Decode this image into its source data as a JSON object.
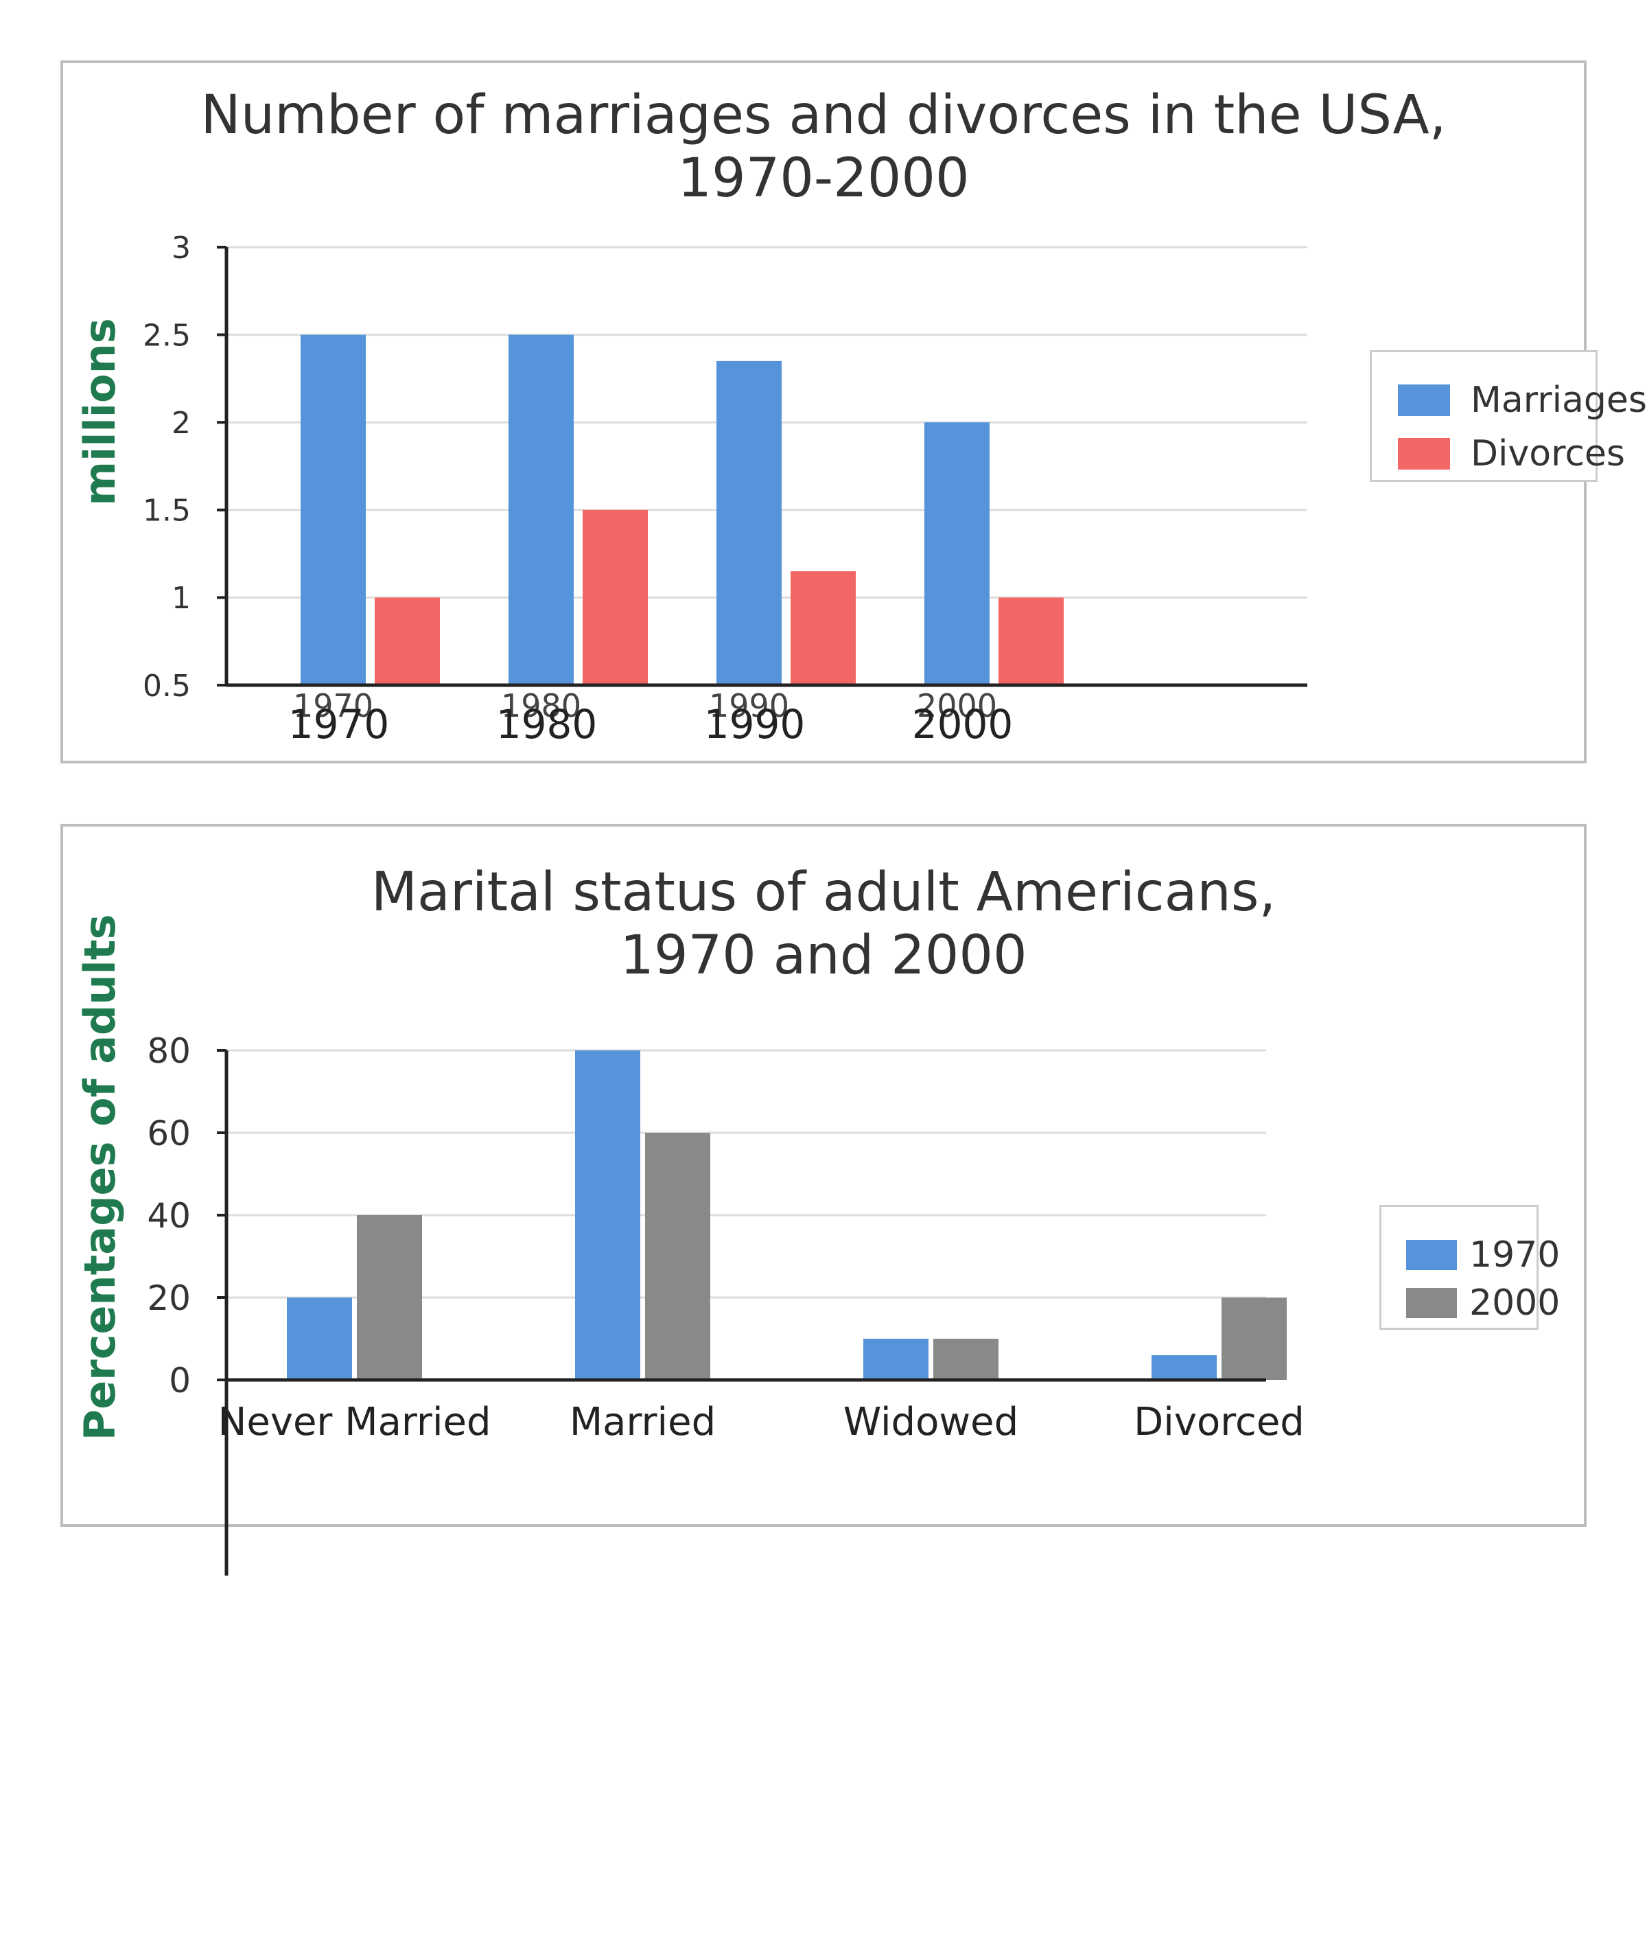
{
  "charts": [
    {
      "title_line1": "Number of marriages and divorces in the USA,",
      "title_line2": "1970-2000",
      "chart_data": {
        "type": "bar",
        "title": "Number of marriages and divorces in the USA, 1970-2000",
        "ylabel": "millions",
        "xlabel": "",
        "categories": [
          "1970",
          "1980",
          "1990",
          "2000"
        ],
        "series": [
          {
            "name": "Marriages",
            "values": [
              2.5,
              2.5,
              2.35,
              2.0
            ],
            "color": "#5593db"
          },
          {
            "name": "Divorces",
            "values": [
              1.0,
              1.5,
              1.15,
              1.0
            ],
            "color": "#f26666"
          }
        ],
        "ylim": [
          0.5,
          3
        ],
        "yticks": [
          "0.5",
          "1",
          "1.5",
          "2",
          "2.5",
          "3"
        ],
        "grid": true,
        "legend": "right"
      }
    },
    {
      "title_line1": "Marital status of adult Americans,",
      "title_line2": "1970 and 2000",
      "chart_data": {
        "type": "bar",
        "title": "Marital status of adult Americans, 1970 and 2000",
        "ylabel": "Percentages of adults",
        "xlabel": "",
        "categories": [
          "Never Married",
          "Married",
          "Widowed",
          "Divorced"
        ],
        "series": [
          {
            "name": "1970",
            "values": [
              20,
              80,
              10,
              6
            ],
            "color": "#5593db"
          },
          {
            "name": "2000",
            "values": [
              40,
              60,
              10,
              20
            ],
            "color": "#898989"
          }
        ],
        "ylim": [
          0,
          80
        ],
        "yticks": [
          "0",
          "20",
          "40",
          "60",
          "80"
        ],
        "grid": true,
        "legend": "right"
      }
    }
  ]
}
